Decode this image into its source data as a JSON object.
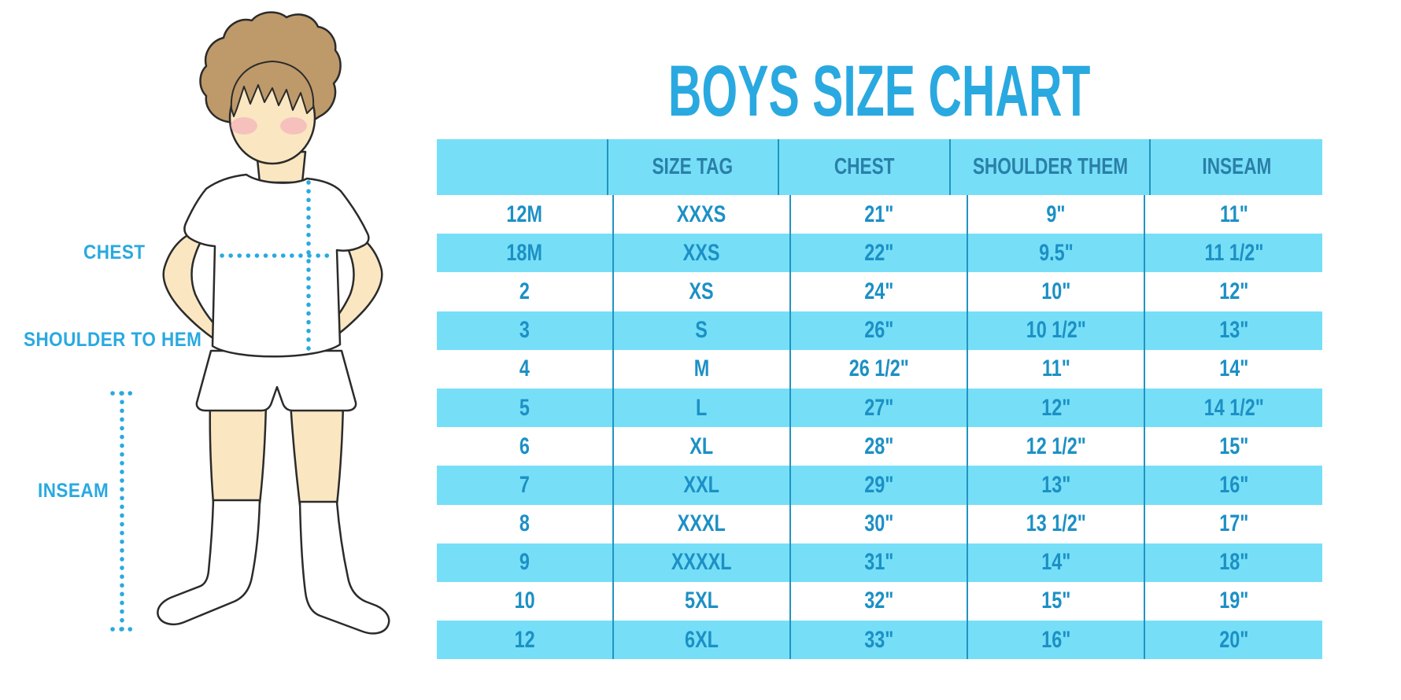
{
  "title": "BOYS SIZE CHART",
  "illustration": {
    "figure_alt": "outline drawing of a boy in a white t-shirt, shorts and knee socks with dotted measurement guides",
    "labels": {
      "chest": "CHEST",
      "shoulder_to_hem": "SHOULDER TO HEM",
      "inseam": "INSEAM"
    }
  },
  "chart_data": {
    "type": "table",
    "title": "BOYS SIZE CHART",
    "columns": [
      "",
      "SIZE TAG",
      "CHEST",
      "SHOULDER THEM",
      "INSEAM"
    ],
    "rows": [
      [
        "12M",
        "XXXS",
        "21\"",
        "9\"",
        "11\""
      ],
      [
        "18M",
        "XXS",
        "22\"",
        "9.5\"",
        "11 1/2\""
      ],
      [
        "2",
        "XS",
        "24\"",
        "10\"",
        "12\""
      ],
      [
        "3",
        "S",
        "26\"",
        "10 1/2\"",
        "13\""
      ],
      [
        "4",
        "M",
        "26 1/2\"",
        "11\"",
        "14\""
      ],
      [
        "5",
        "L",
        "27\"",
        "12\"",
        "14 1/2\""
      ],
      [
        "6",
        "XL",
        "28\"",
        "12 1/2\"",
        "15\""
      ],
      [
        "7",
        "XXL",
        "29\"",
        "13\"",
        "16\""
      ],
      [
        "8",
        "XXXL",
        "30\"",
        "13 1/2\"",
        "17\""
      ],
      [
        "9",
        "XXXXL",
        "31\"",
        "14\"",
        "18\""
      ],
      [
        "10",
        "5XL",
        "32\"",
        "15\"",
        "19\""
      ],
      [
        "12",
        "6XL",
        "33\"",
        "16\"",
        "20\""
      ]
    ],
    "layout": {
      "row_striping": "header and every second data row light blue, others white",
      "grid": "internal vertical dividers only",
      "legend": "none"
    }
  },
  "colors": {
    "accent_blue": "#29A9E0",
    "band_blue": "#76DFF7",
    "header_text": "#2A7FA8",
    "cell_text": "#1C90C5",
    "divider": "#2293C2",
    "skin": "#FAE7C2",
    "hair": "#BE9A6A",
    "blush": "#F2A3B8",
    "outline": "#2B2B2B",
    "background": "#FFFFFF"
  }
}
